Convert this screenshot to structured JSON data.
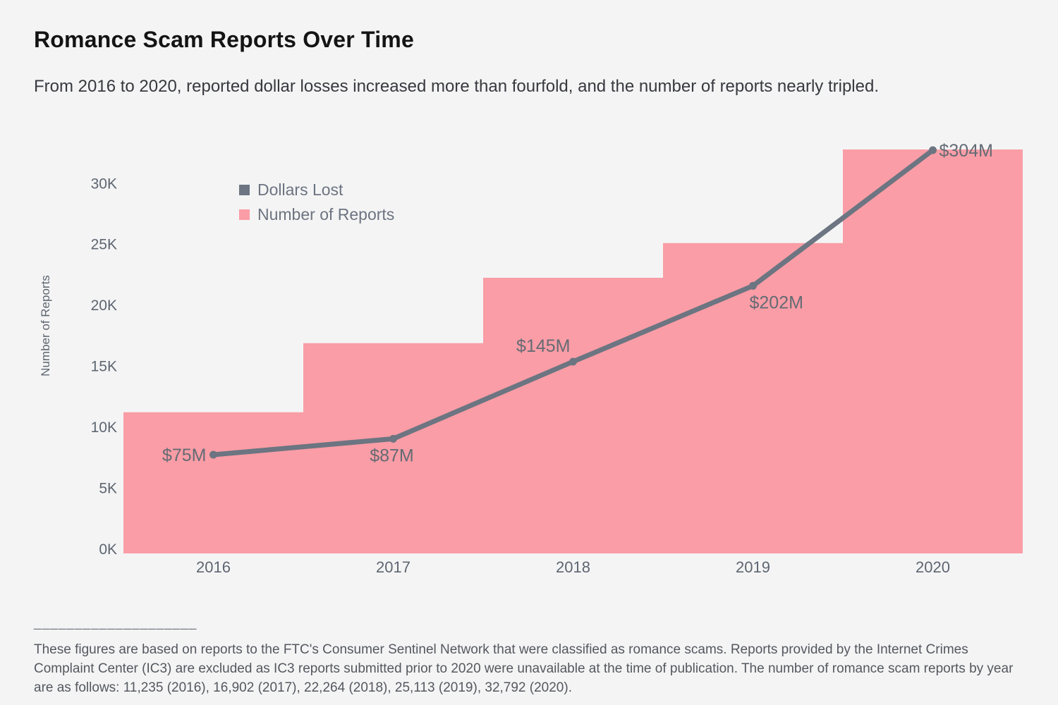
{
  "page": {
    "title": "Romance Scam Reports Over Time",
    "subtitle": "From 2016 to 2020, reported dollar losses increased more than fourfold, and the number of reports nearly tripled.",
    "footnote_divider": "____________________",
    "footnote": "These figures are based on reports to the FTC's Consumer Sentinel Network that were classified as romance scams. Reports provided by the Internet Crimes Complaint Center (IC3) are excluded as IC3 reports submitted prior to 2020 were unavailable at the time of publication. The number of romance scam reports by year are as follows: 11,235 (2016), 16,902 (2017), 22,264 (2018), 25,113 (2019), 32,792 (2020)."
  },
  "colors": {
    "background": "#F4F4F5",
    "reports_pink": "#FA9DA6",
    "dollars_gray": "#6C7581",
    "tick_text": "#5E6670",
    "data_label_text": "#646B74"
  },
  "chart_data": {
    "type": "area",
    "subtype": "step-area with overlaid line (dual implicit axes, both zero-based)",
    "categories": [
      "2016",
      "2017",
      "2018",
      "2019",
      "2020"
    ],
    "series": [
      {
        "name": "Dollars Lost",
        "type": "line",
        "color": "#6C7581",
        "unit": "USD millions",
        "values": [
          75,
          87,
          145,
          202,
          304
        ],
        "labels": [
          "$75M",
          "$87M",
          "$145M",
          "$202M",
          "$304M"
        ]
      },
      {
        "name": "Number of Reports",
        "type": "step-area",
        "color": "#FA9DA6",
        "unit": "reports",
        "values": [
          11235,
          16902,
          22264,
          25113,
          32792
        ]
      }
    ],
    "xlabel": "",
    "ylabel": "Number of Reports",
    "yticks": {
      "values": [
        0,
        5000,
        10000,
        15000,
        20000,
        25000,
        30000
      ],
      "labels": [
        "0K",
        "5K",
        "10K",
        "15K",
        "20K",
        "25K",
        "30K"
      ]
    },
    "ylim": [
      0,
      33200
    ],
    "dollars_lim": [
      0,
      304
    ],
    "grid": false,
    "legend_position": "top-left-inside"
  }
}
